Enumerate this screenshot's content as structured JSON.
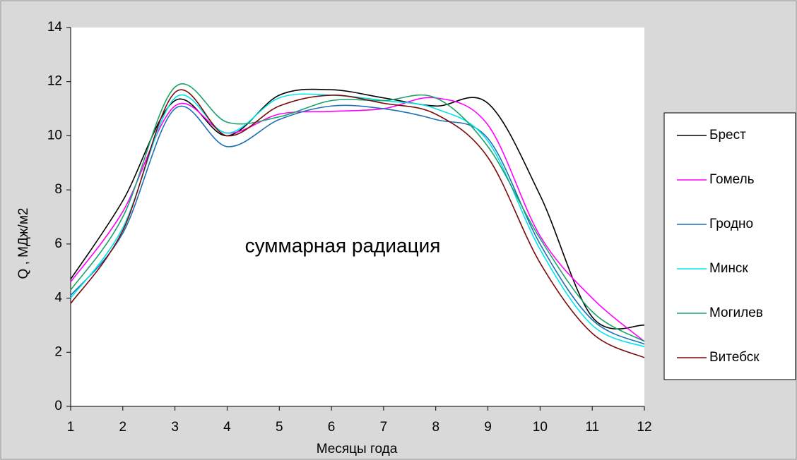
{
  "chart_data": {
    "type": "line",
    "annotation": "суммарная радиация",
    "x_label": "Месяцы года",
    "y_label": "Q , МДж/м2",
    "x": [
      1,
      2,
      3,
      4,
      5,
      6,
      7,
      8,
      9,
      10,
      11,
      12
    ],
    "xlim": [
      1,
      12
    ],
    "xticks": [
      1,
      2,
      3,
      4,
      5,
      6,
      7,
      8,
      9,
      10,
      11,
      12
    ],
    "ylim": [
      0,
      14
    ],
    "yticks": [
      0,
      2,
      4,
      6,
      8,
      10,
      12,
      14
    ],
    "legend": "right",
    "series": [
      {
        "name": "Брест",
        "color": "#000000",
        "values": [
          4.7,
          7.6,
          11.3,
          10.0,
          11.5,
          11.7,
          11.4,
          11.1,
          11.2,
          7.8,
          3.3,
          3.0
        ]
      },
      {
        "name": "Гомель",
        "color": "#ff00ff",
        "values": [
          4.6,
          7.2,
          11.1,
          10.1,
          10.8,
          10.9,
          11.0,
          11.4,
          10.4,
          6.3,
          4.0,
          2.4
        ]
      },
      {
        "name": "Гродно",
        "color": "#1f6fb4",
        "values": [
          4.1,
          6.4,
          11.0,
          9.6,
          10.6,
          11.1,
          11.0,
          10.6,
          9.9,
          6.0,
          3.2,
          2.3
        ]
      },
      {
        "name": "Минск",
        "color": "#00e5ee",
        "values": [
          4.0,
          6.6,
          11.4,
          10.1,
          11.4,
          11.5,
          11.3,
          11.0,
          9.8,
          5.8,
          3.0,
          2.2
        ]
      },
      {
        "name": "Могилев",
        "color": "#1aa36a",
        "values": [
          4.3,
          7.0,
          11.8,
          10.5,
          10.7,
          11.3,
          11.3,
          11.4,
          9.6,
          6.2,
          3.5,
          2.4
        ]
      },
      {
        "name": "Витебск",
        "color": "#7a0a0a",
        "values": [
          3.8,
          6.5,
          11.6,
          10.0,
          11.1,
          11.5,
          11.2,
          10.8,
          9.2,
          5.3,
          2.7,
          1.8
        ]
      }
    ]
  }
}
